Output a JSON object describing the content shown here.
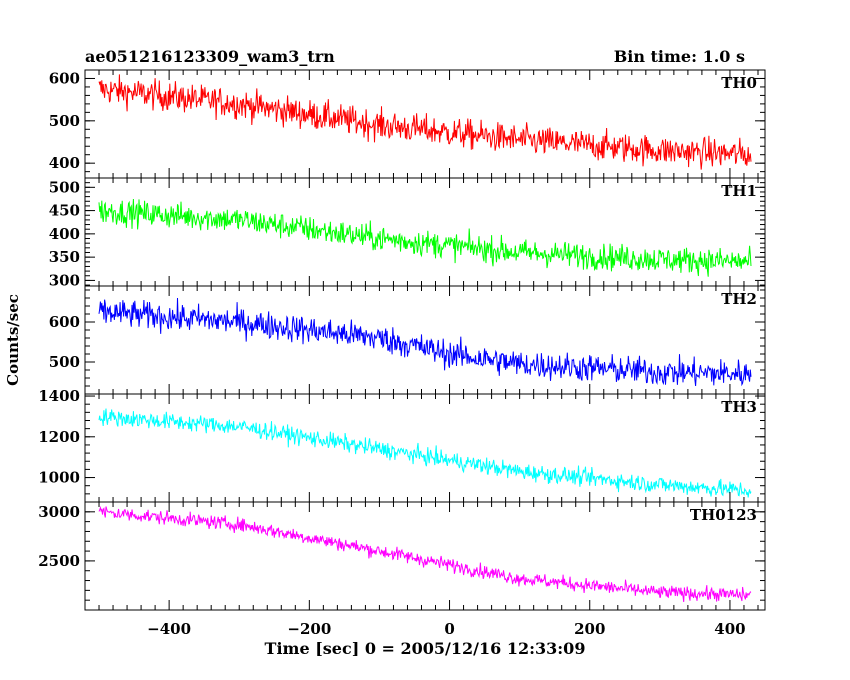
{
  "header": {
    "title": "ae051216123309_wam3_trn",
    "bin_time": "Bin time: 1.0 s"
  },
  "chart_data": {
    "type": "line",
    "title": "ae051216123309_wam3_trn",
    "xlabel": "Time [sec] 0 = 2005/12/16 12:33:09",
    "ylabel": "Counts/sec",
    "xlim": [
      -520,
      450
    ],
    "x_ticks": [
      -400,
      -200,
      0,
      200,
      400
    ],
    "x_tick_labels": [
      "−400",
      "−200",
      "0",
      "200",
      "400"
    ],
    "x_range": [
      -500,
      430
    ],
    "panels": [
      {
        "name": "TH0",
        "color": "#ff0000",
        "ylim": [
          365,
          620
        ],
        "y_ticks": [
          400,
          500,
          600
        ],
        "y_tick_labels": [
          "400",
          "500",
          "600"
        ],
        "trend": [
          [
            -500,
            575
          ],
          [
            -300,
            540
          ],
          [
            -100,
            490
          ],
          [
            100,
            455
          ],
          [
            300,
            430
          ],
          [
            430,
            420
          ]
        ],
        "noise": 25
      },
      {
        "name": "TH1",
        "color": "#00ff00",
        "ylim": [
          288,
          520
        ],
        "y_ticks": [
          300,
          350,
          400,
          450,
          500
        ],
        "y_tick_labels": [
          "300",
          "350",
          "400",
          "450",
          "500"
        ],
        "trend": [
          [
            -500,
            450
          ],
          [
            -300,
            430
          ],
          [
            -100,
            390
          ],
          [
            100,
            360
          ],
          [
            300,
            345
          ],
          [
            430,
            340
          ]
        ],
        "noise": 20
      },
      {
        "name": "TH2",
        "color": "#0000ff",
        "ylim": [
          420,
          690
        ],
        "y_ticks": [
          500,
          600
        ],
        "y_tick_labels": [
          "500",
          "600"
        ],
        "trend": [
          [
            -500,
            625
          ],
          [
            -300,
            600
          ],
          [
            -100,
            560
          ],
          [
            0,
            520
          ],
          [
            100,
            495
          ],
          [
            300,
            475
          ],
          [
            430,
            470
          ]
        ],
        "noise": 25
      },
      {
        "name": "TH3",
        "color": "#00ffff",
        "ylim": [
          880,
          1410
        ],
        "y_ticks": [
          1000,
          1200,
          1400
        ],
        "y_tick_labels": [
          "1000",
          "1200",
          "1400"
        ],
        "trend": [
          [
            -500,
            1300
          ],
          [
            -300,
            1250
          ],
          [
            -100,
            1140
          ],
          [
            100,
            1030
          ],
          [
            300,
            965
          ],
          [
            430,
            935
          ]
        ],
        "noise": 30
      },
      {
        "name": "TH0123",
        "color": "#ff00ff",
        "ylim": [
          2000,
          3100
        ],
        "y_ticks": [
          2500,
          3000
        ],
        "y_tick_labels": [
          "2500",
          "3000"
        ],
        "trend": [
          [
            -500,
            3000
          ],
          [
            -300,
            2870
          ],
          [
            -100,
            2600
          ],
          [
            100,
            2320
          ],
          [
            300,
            2180
          ],
          [
            430,
            2150
          ]
        ],
        "noise": 50
      }
    ]
  }
}
